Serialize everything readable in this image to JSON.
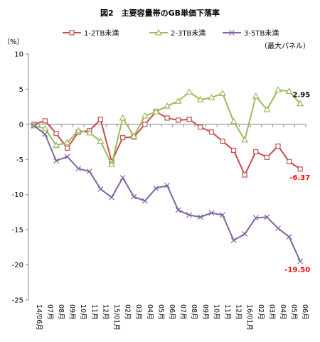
{
  "chart_data": {
    "type": "line",
    "title": "図2　主要容量帯のGB単価下落率",
    "ylabel": "（%）",
    "note": "（最大パネル）",
    "ylim": [
      -25,
      10
    ],
    "yticks": [
      10,
      5,
      0,
      -5,
      -10,
      -15,
      -20,
      -25
    ],
    "grid": false,
    "legend_position": "top",
    "categories": [
      "14/06月",
      "07月",
      "08月",
      "09月",
      "10月",
      "11月",
      "12月",
      "15/01月",
      "02月",
      "03月",
      "04月",
      "05月",
      "06月",
      "07月",
      "08月",
      "09月",
      "10月",
      "11月",
      "12月",
      "16/01月",
      "02月",
      "03月",
      "04月",
      "05月",
      "06月"
    ],
    "series": [
      {
        "name": "1-2TB未満",
        "color": "#c0504d",
        "marker": "square",
        "values": [
          0,
          0.5,
          -1.3,
          -3.4,
          -1.1,
          -0.9,
          0.7,
          -5.3,
          -1.9,
          -1.8,
          0,
          1.8,
          0.9,
          0.6,
          0.7,
          -0.4,
          -1.1,
          -2.4,
          -3.7,
          -7.2,
          -3.9,
          -4.7,
          -3.1,
          -5.3,
          -6.37
        ],
        "end_label": "-6.37",
        "end_label_color": "#ff0000"
      },
      {
        "name": "2-3TB未満",
        "color": "#9bbb59",
        "marker": "triangle",
        "values": [
          -0.2,
          -0.6,
          -3.0,
          -2.6,
          -0.9,
          -1.2,
          -2.4,
          -5.7,
          0.9,
          -1.7,
          1.2,
          1.8,
          2.6,
          3.3,
          4.6,
          3.5,
          3.8,
          4.4,
          0.4,
          -2.2,
          4.0,
          2.1,
          4.9,
          4.7,
          2.95
        ],
        "end_label": "2.95",
        "end_label_color": "#000000"
      },
      {
        "name": "3-5TB未満",
        "color": "#8064a2",
        "marker": "x",
        "values": [
          -0.2,
          -1.4,
          -5.2,
          -4.6,
          -6.3,
          -6.7,
          -9.2,
          -10.4,
          -7.6,
          -10.3,
          -10.9,
          -9.1,
          -8.7,
          -12.2,
          -12.9,
          -13.2,
          -12.6,
          -12.9,
          -16.5,
          -15.6,
          -13.3,
          -13.2,
          -14.8,
          -16.0,
          -19.5
        ],
        "end_label": "-19.50",
        "end_label_color": "#ff0000"
      }
    ]
  }
}
